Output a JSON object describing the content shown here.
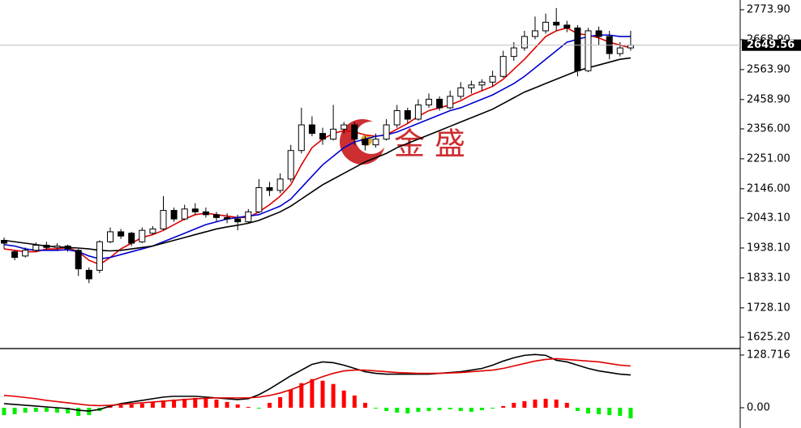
{
  "chart_data": [
    {
      "type": "candlestick",
      "watermark": "金 盛",
      "ylim": [
        1585.4,
        2808
      ],
      "yticks": [
        {
          "value": 2773.9,
          "label": "2773.90"
        },
        {
          "value": 2668.9,
          "label": "2668.90"
        },
        {
          "value": 2563.9,
          "label": "2563.90"
        },
        {
          "value": 2458.9,
          "label": "2458.90"
        },
        {
          "value": 2356,
          "label": "2356.00"
        },
        {
          "value": 2251,
          "label": "2251.00"
        },
        {
          "value": 2146,
          "label": "2146.00"
        },
        {
          "value": 2043.1,
          "label": "2043.10"
        },
        {
          "value": 1938.1,
          "label": "1938.10"
        },
        {
          "value": 1833.1,
          "label": "1833.10"
        },
        {
          "value": 1728.1,
          "label": "1728.10"
        },
        {
          "value": 1625.2,
          "label": "1625.20"
        }
      ],
      "ohlc": [
        [
          1965,
          1975,
          1935,
          1955
        ],
        [
          1925,
          1930,
          1895,
          1905
        ],
        [
          1910,
          1940,
          1905,
          1930
        ],
        [
          1930,
          1958,
          1925,
          1948
        ],
        [
          1948,
          1960,
          1930,
          1940
        ],
        [
          1940,
          1955,
          1930,
          1945
        ],
        [
          1945,
          1950,
          1925,
          1935
        ],
        [
          1930,
          1935,
          1840,
          1865
        ],
        [
          1860,
          1870,
          1815,
          1830
        ],
        [
          1860,
          1965,
          1850,
          1960
        ],
        [
          1960,
          2010,
          1955,
          1995
        ],
        [
          1995,
          2005,
          1970,
          1980
        ],
        [
          1990,
          1995,
          1945,
          1955
        ],
        [
          1960,
          2010,
          1955,
          2000
        ],
        [
          1990,
          2015,
          1985,
          2005
        ],
        [
          2005,
          2120,
          2000,
          2070
        ],
        [
          2070,
          2080,
          2030,
          2040
        ],
        [
          2040,
          2090,
          2035,
          2075
        ],
        [
          2075,
          2095,
          2055,
          2065
        ],
        [
          2065,
          2080,
          2045,
          2055
        ],
        [
          2055,
          2065,
          2030,
          2045
        ],
        [
          2045,
          2060,
          2025,
          2040
        ],
        [
          2040,
          2055,
          2000,
          2030
        ],
        [
          2030,
          2075,
          2025,
          2065
        ],
        [
          2065,
          2180,
          2060,
          2150
        ],
        [
          2150,
          2170,
          2120,
          2140
        ],
        [
          2140,
          2200,
          2130,
          2180
        ],
        [
          2180,
          2300,
          2170,
          2280
        ],
        [
          2280,
          2430,
          2270,
          2370
        ],
        [
          2370,
          2400,
          2330,
          2340
        ],
        [
          2340,
          2360,
          2300,
          2320
        ],
        [
          2320,
          2440,
          2315,
          2355
        ],
        [
          2355,
          2380,
          2340,
          2370
        ],
        [
          2370,
          2380,
          2300,
          2320
        ],
        [
          2320,
          2330,
          2280,
          2300
        ],
        [
          2300,
          2340,
          2290,
          2320
        ],
        [
          2320,
          2390,
          2315,
          2370
        ],
        [
          2370,
          2440,
          2360,
          2420
        ],
        [
          2420,
          2430,
          2375,
          2390
        ],
        [
          2390,
          2460,
          2385,
          2440
        ],
        [
          2440,
          2480,
          2430,
          2460
        ],
        [
          2460,
          2470,
          2420,
          2430
        ],
        [
          2430,
          2490,
          2425,
          2470
        ],
        [
          2470,
          2520,
          2460,
          2500
        ],
        [
          2500,
          2525,
          2480,
          2510
        ],
        [
          2510,
          2530,
          2490,
          2520
        ],
        [
          2520,
          2560,
          2505,
          2540
        ],
        [
          2540,
          2630,
          2535,
          2610
        ],
        [
          2610,
          2660,
          2595,
          2640
        ],
        [
          2640,
          2700,
          2630,
          2680
        ],
        [
          2680,
          2750,
          2670,
          2700
        ],
        [
          2700,
          2760,
          2690,
          2730
        ],
        [
          2730,
          2780,
          2700,
          2720
        ],
        [
          2720,
          2735,
          2695,
          2710
        ],
        [
          2710,
          2720,
          2540,
          2560
        ],
        [
          2560,
          2710,
          2555,
          2700
        ],
        [
          2700,
          2715,
          2650,
          2680
        ],
        [
          2680,
          2700,
          2600,
          2620
        ],
        [
          2620,
          2660,
          2610,
          2640
        ],
        [
          2640,
          2700,
          2630,
          2649.56
        ]
      ],
      "lines": [
        {
          "color": "#e00000",
          "values": [
            1935,
            1930,
            1925,
            1925,
            1935,
            1935,
            1940,
            1925,
            1895,
            1880,
            1905,
            1935,
            1955,
            1975,
            1985,
            2000,
            2020,
            2040,
            2055,
            2060,
            2055,
            2050,
            2045,
            2045,
            2065,
            2090,
            2120,
            2160,
            2230,
            2290,
            2320,
            2340,
            2350,
            2345,
            2335,
            2330,
            2335,
            2355,
            2375,
            2400,
            2420,
            2430,
            2440,
            2455,
            2475,
            2490,
            2505,
            2530,
            2565,
            2600,
            2640,
            2680,
            2700,
            2710,
            2690,
            2685,
            2675,
            2660,
            2650,
            2640
          ]
        },
        {
          "color": "#0000d0",
          "values": [
            1950,
            1945,
            1935,
            1930,
            1930,
            1930,
            1932,
            1925,
            1910,
            1900,
            1905,
            1915,
            1925,
            1935,
            1945,
            1960,
            1975,
            1990,
            2005,
            2020,
            2030,
            2040,
            2045,
            2050,
            2055,
            2070,
            2085,
            2110,
            2150,
            2190,
            2230,
            2260,
            2290,
            2310,
            2320,
            2330,
            2335,
            2345,
            2360,
            2375,
            2390,
            2405,
            2420,
            2430,
            2445,
            2460,
            2475,
            2495,
            2515,
            2540,
            2570,
            2600,
            2630,
            2660,
            2670,
            2680,
            2685,
            2685,
            2680,
            2680
          ]
        },
        {
          "color": "#000000",
          "values": [
            1965,
            1960,
            1955,
            1950,
            1945,
            1942,
            1940,
            1938,
            1935,
            1930,
            1928,
            1930,
            1935,
            1940,
            1945,
            1955,
            1965,
            1975,
            1985,
            1995,
            2005,
            2012,
            2018,
            2025,
            2035,
            2050,
            2065,
            2085,
            2110,
            2135,
            2160,
            2180,
            2200,
            2220,
            2240,
            2255,
            2270,
            2290,
            2305,
            2320,
            2335,
            2350,
            2365,
            2380,
            2395,
            2410,
            2425,
            2445,
            2465,
            2485,
            2500,
            2515,
            2530,
            2545,
            2560,
            2570,
            2580,
            2590,
            2600,
            2605
          ]
        }
      ]
    },
    {
      "type": "macd",
      "ylim": [
        -49.5,
        140.6
      ],
      "yticks": [
        128.716,
        {
          "value": 0,
          "label": "0.00"
        }
      ],
      "up_color": "#ff0000",
      "down_color": "#00ee00",
      "histogram": [
        -18,
        -16,
        -12,
        -10,
        -10,
        -12,
        -14,
        -20,
        -18,
        -8,
        4,
        6,
        8,
        10,
        14,
        18,
        20,
        22,
        24,
        24,
        20,
        14,
        8,
        2,
        -2,
        12,
        26,
        44,
        60,
        70,
        66,
        58,
        42,
        30,
        12,
        -2,
        -8,
        -12,
        -14,
        -10,
        -8,
        -6,
        -4,
        -8,
        -10,
        -6,
        -2,
        4,
        12,
        16,
        20,
        22,
        20,
        12,
        -8,
        -14,
        -16,
        -18,
        -20,
        -26
      ],
      "lines": [
        {
          "color": "#000000",
          "values": [
            10,
            8,
            6,
            4,
            2,
            0,
            -2,
            -6,
            -8,
            -4,
            4,
            10,
            14,
            18,
            22,
            26,
            28,
            28,
            28,
            26,
            24,
            22,
            20,
            22,
            32,
            46,
            62,
            78,
            92,
            106,
            112,
            110,
            104,
            96,
            88,
            84,
            82,
            82,
            82,
            82,
            82,
            84,
            86,
            88,
            92,
            96,
            104,
            114,
            122,
            128,
            130,
            128,
            116,
            112,
            104,
            96,
            90,
            86,
            82,
            80
          ]
        },
        {
          "color": "#e00000",
          "values": [
            30,
            28,
            25,
            22,
            18,
            15,
            12,
            9,
            6,
            5,
            6,
            8,
            10,
            12,
            14,
            16,
            18,
            20,
            22,
            23,
            24,
            24,
            24,
            24,
            26,
            30,
            36,
            44,
            54,
            66,
            76,
            84,
            90,
            92,
            92,
            90,
            88,
            86,
            85,
            84,
            84,
            84,
            85,
            86,
            88,
            90,
            92,
            96,
            102,
            108,
            114,
            118,
            120,
            118,
            116,
            114,
            112,
            108,
            104,
            102
          ]
        }
      ]
    }
  ]
}
